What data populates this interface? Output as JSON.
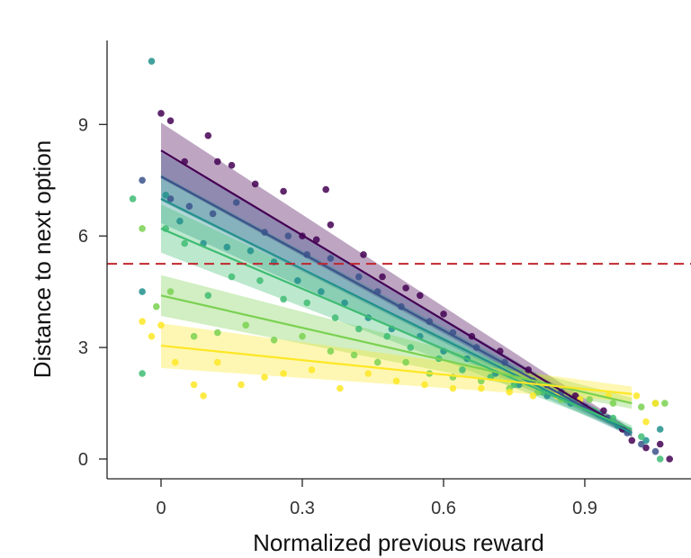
{
  "chart_data": {
    "type": "scatter",
    "xlabel": "Normalized previous reward",
    "ylabel": "Distance to next option",
    "xlim": [
      -0.12,
      1.12
    ],
    "ylim": [
      -0.5,
      11.3
    ],
    "xticks": [
      "0",
      "0.3",
      "0.6",
      "0.9"
    ],
    "xtick_values": [
      0,
      0.3,
      0.6,
      0.9
    ],
    "yticks": [
      "0",
      "3",
      "6",
      "9"
    ],
    "ytick_values": [
      0,
      3,
      6,
      9
    ],
    "reference_line": {
      "y": 5.25,
      "color": "#c0272d",
      "style": "dashed"
    },
    "fit_range": [
      0,
      1.0
    ],
    "series": [
      {
        "color": "#440154",
        "fit": {
          "intercept": 8.3,
          "slope": -7.6
        },
        "band_halfwidth": [
          0.75,
          0.1
        ],
        "points": [
          [
            0,
            9.3
          ],
          [
            0.02,
            9.1
          ],
          [
            0.05,
            8.0
          ],
          [
            0.1,
            8.7
          ],
          [
            0.12,
            8.0
          ],
          [
            0.15,
            7.9
          ],
          [
            0.2,
            7.4
          ],
          [
            0.26,
            7.2
          ],
          [
            0.3,
            6.0
          ],
          [
            0.33,
            5.9
          ],
          [
            0.36,
            6.3
          ],
          [
            0.35,
            7.25
          ],
          [
            0.43,
            5.5
          ],
          [
            0.47,
            4.9
          ],
          [
            0.52,
            4.6
          ],
          [
            0.55,
            4.4
          ],
          [
            0.6,
            3.9
          ],
          [
            0.66,
            3.3
          ],
          [
            0.72,
            2.9
          ],
          [
            0.78,
            2.4
          ],
          [
            0.82,
            2.0
          ],
          [
            0.88,
            1.7
          ],
          [
            0.94,
            1.3
          ],
          [
            0.98,
            0.8
          ],
          [
            1.0,
            0.5
          ],
          [
            1.03,
            0.3
          ],
          [
            1.06,
            0.4
          ],
          [
            1.08,
            0.0
          ]
        ]
      },
      {
        "color": "#3b528b",
        "fit": {
          "intercept": 7.6,
          "slope": -6.9
        },
        "band_halfwidth": [
          0.65,
          0.1
        ],
        "points": [
          [
            -0.04,
            7.5
          ],
          [
            0.02,
            7.0
          ],
          [
            0.06,
            6.8
          ],
          [
            0.11,
            6.6
          ],
          [
            0.16,
            6.9
          ],
          [
            0.22,
            6.1
          ],
          [
            0.27,
            6.0
          ],
          [
            0.31,
            5.5
          ],
          [
            0.36,
            5.4
          ],
          [
            0.42,
            4.9
          ],
          [
            0.46,
            4.5
          ],
          [
            0.51,
            4.1
          ],
          [
            0.57,
            3.7
          ],
          [
            0.62,
            3.4
          ],
          [
            0.67,
            3.0
          ],
          [
            0.73,
            2.6
          ],
          [
            0.79,
            2.1
          ],
          [
            0.85,
            1.8
          ],
          [
            0.9,
            1.4
          ],
          [
            0.95,
            1.1
          ],
          [
            0.99,
            0.7
          ],
          [
            1.02,
            0.4
          ],
          [
            1.05,
            0.2
          ]
        ]
      },
      {
        "color": "#21918c",
        "fit": {
          "intercept": 7.0,
          "slope": -6.3
        },
        "band_halfwidth": [
          0.65,
          0.1
        ],
        "points": [
          [
            -0.02,
            10.7
          ],
          [
            -0.04,
            4.5
          ],
          [
            0.01,
            7.1
          ],
          [
            0.04,
            6.4
          ],
          [
            0.09,
            5.8
          ],
          [
            0.14,
            5.7
          ],
          [
            0.19,
            5.6
          ],
          [
            0.24,
            5.3
          ],
          [
            0.29,
            4.8
          ],
          [
            0.34,
            4.5
          ],
          [
            0.39,
            4.2
          ],
          [
            0.44,
            3.8
          ],
          [
            0.49,
            3.5
          ],
          [
            0.55,
            3.3
          ],
          [
            0.6,
            2.9
          ],
          [
            0.65,
            2.7
          ],
          [
            0.71,
            2.3
          ],
          [
            0.76,
            2.0
          ],
          [
            0.82,
            1.7
          ],
          [
            0.87,
            1.5
          ],
          [
            0.93,
            1.2
          ],
          [
            0.97,
            0.9
          ],
          [
            1.03,
            0.5
          ],
          [
            1.06,
            0.8
          ]
        ]
      },
      {
        "color": "#3fbc73",
        "fit": {
          "intercept": 6.2,
          "slope": -5.4
        },
        "band_halfwidth": [
          0.65,
          0.1
        ],
        "points": [
          [
            -0.06,
            7.0
          ],
          [
            -0.04,
            2.3
          ],
          [
            0.01,
            6.2
          ],
          [
            0.05,
            5.8
          ],
          [
            0.1,
            4.4
          ],
          [
            0.15,
            4.9
          ],
          [
            0.21,
            4.8
          ],
          [
            0.26,
            4.3
          ],
          [
            0.31,
            4.2
          ],
          [
            0.37,
            3.8
          ],
          [
            0.42,
            3.5
          ],
          [
            0.48,
            3.3
          ],
          [
            0.53,
            3.0
          ],
          [
            0.59,
            2.7
          ],
          [
            0.64,
            2.4
          ],
          [
            0.7,
            2.2
          ],
          [
            0.75,
            2.0
          ],
          [
            0.81,
            1.8
          ],
          [
            0.86,
            1.6
          ],
          [
            0.92,
            1.3
          ],
          [
            0.96,
            1.1
          ],
          [
            1.02,
            0.6
          ],
          [
            1.06,
            0.0
          ]
        ]
      },
      {
        "color": "#7ad151",
        "fit": {
          "intercept": 4.4,
          "slope": -2.9
        },
        "band_halfwidth": [
          0.55,
          0.15
        ],
        "points": [
          [
            -0.04,
            6.2
          ],
          [
            -0.01,
            4.1
          ],
          [
            0.02,
            4.5
          ],
          [
            0.07,
            3.3
          ],
          [
            0.12,
            3.4
          ],
          [
            0.18,
            3.6
          ],
          [
            0.24,
            3.2
          ],
          [
            0.3,
            3.3
          ],
          [
            0.36,
            2.9
          ],
          [
            0.41,
            2.8
          ],
          [
            0.46,
            2.6
          ],
          [
            0.52,
            2.6
          ],
          [
            0.57,
            2.3
          ],
          [
            0.62,
            2.2
          ],
          [
            0.68,
            2.1
          ],
          [
            0.74,
            1.9
          ],
          [
            0.8,
            1.8
          ],
          [
            0.85,
            1.6
          ],
          [
            0.91,
            1.6
          ],
          [
            0.96,
            1.5
          ],
          [
            1.02,
            1.4
          ],
          [
            1.05,
            1.5
          ],
          [
            1.07,
            1.5
          ]
        ]
      },
      {
        "color": "#fde725",
        "fit": {
          "intercept": 3.05,
          "slope": -1.3
        },
        "band_halfwidth": [
          0.6,
          0.2
        ],
        "points": [
          [
            -0.04,
            3.7
          ],
          [
            -0.02,
            3.3
          ],
          [
            0.0,
            3.6
          ],
          [
            0.03,
            2.6
          ],
          [
            0.07,
            2.0
          ],
          [
            0.09,
            1.7
          ],
          [
            0.12,
            2.6
          ],
          [
            0.17,
            2.0
          ],
          [
            0.22,
            2.2
          ],
          [
            0.26,
            2.3
          ],
          [
            0.32,
            2.4
          ],
          [
            0.38,
            1.9
          ],
          [
            0.44,
            2.3
          ],
          [
            0.5,
            2.1
          ],
          [
            0.56,
            2.0
          ],
          [
            0.62,
            1.9
          ],
          [
            0.68,
            1.9
          ],
          [
            0.74,
            1.8
          ],
          [
            0.79,
            1.7
          ],
          [
            0.84,
            1.7
          ],
          [
            0.89,
            1.6
          ],
          [
            0.95,
            1.7
          ],
          [
            1.01,
            1.7
          ],
          [
            1.03,
            1.0
          ],
          [
            1.05,
            1.5
          ]
        ]
      }
    ]
  }
}
